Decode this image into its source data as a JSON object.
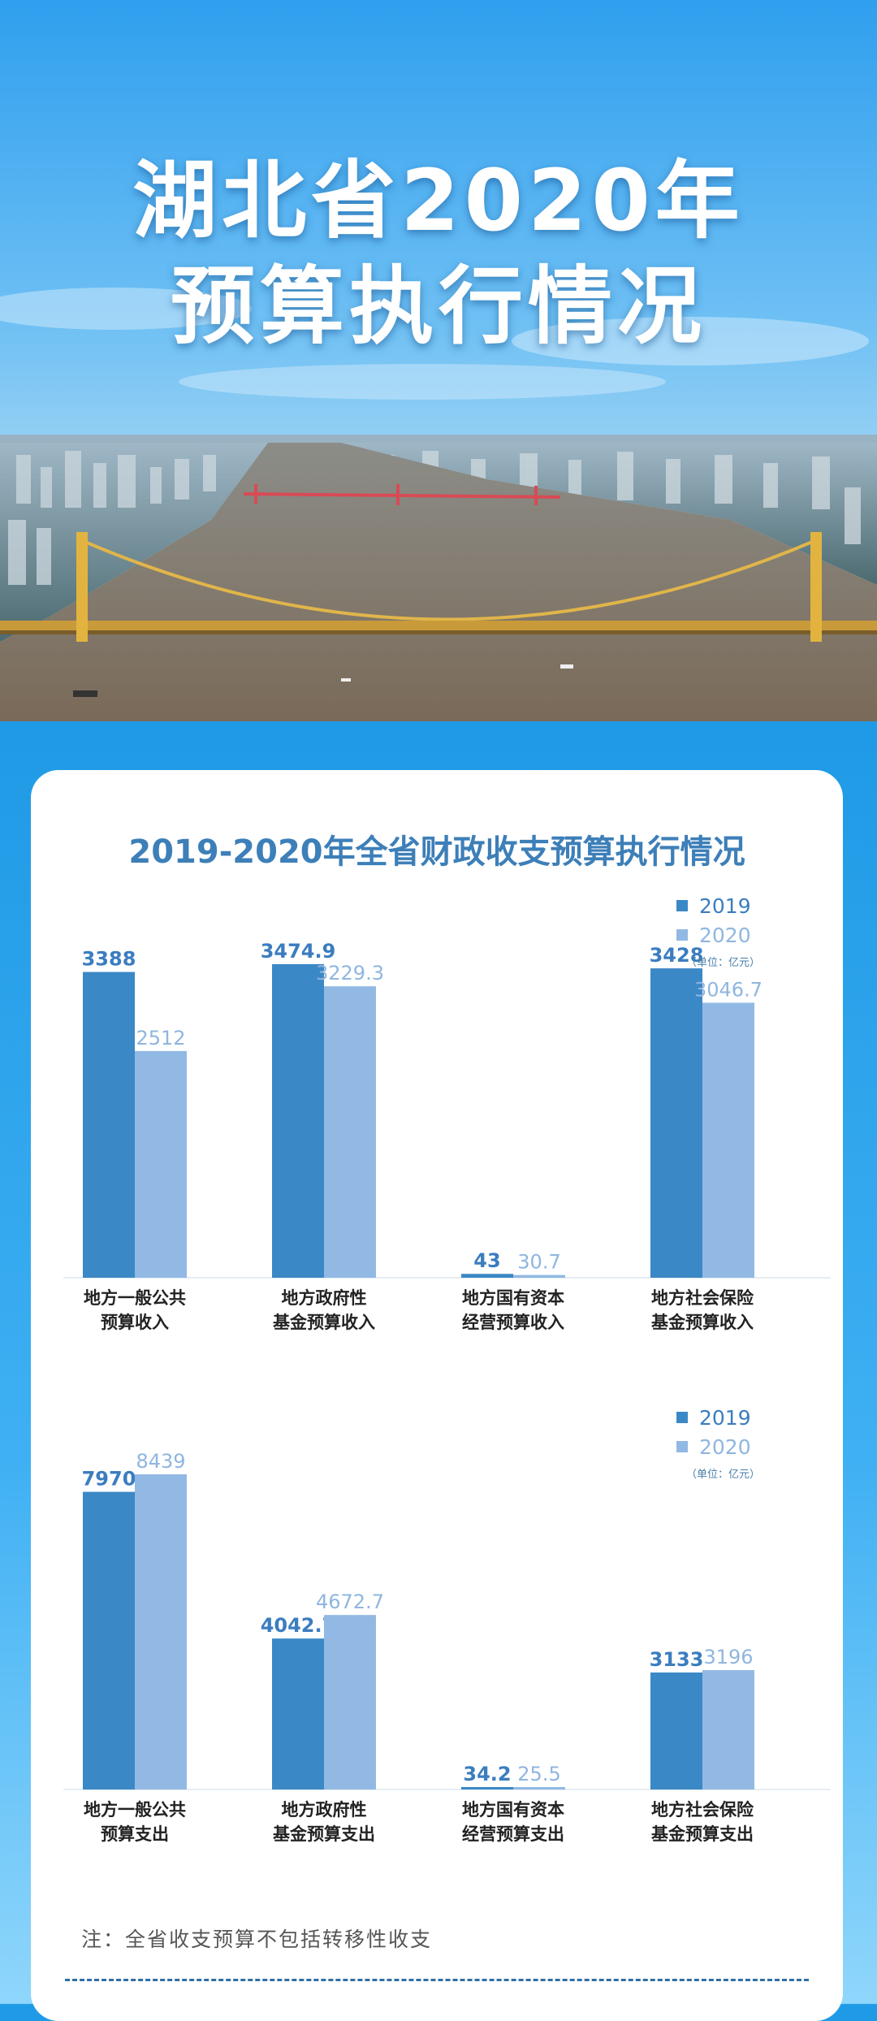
{
  "hero": {
    "title_line1": "湖北省2020年",
    "title_line2": "预算执行情况"
  },
  "card": {
    "title": "2019-2020年全省财政收支预算执行情况",
    "note": "注：全省收支预算不包括转移性收支"
  },
  "colors": {
    "series_2019": "#3b88c6",
    "series_2020": "#92b9e4",
    "label_2019": "#3b7dbf",
    "label_2020": "#8fb6df"
  },
  "chart_data": [
    {
      "type": "bar",
      "title": "",
      "unit": "（单位：亿元）",
      "legend_position": "top-right",
      "grid": false,
      "categories": [
        [
          "地方一般公共",
          "预算收入"
        ],
        [
          "地方政府性",
          "基金预算收入"
        ],
        [
          "地方国有资本",
          "经营预算收入"
        ],
        [
          "地方社会保险",
          "基金预算收入"
        ]
      ],
      "series": [
        {
          "name": "2019",
          "values": [
            3388,
            3474.9,
            43,
            3428
          ],
          "labels": [
            "3388",
            "3474.9",
            "43",
            "3428"
          ]
        },
        {
          "name": "2020",
          "values": [
            2512,
            3229.3,
            30.7,
            3046.7
          ],
          "labels": [
            "2512",
            "3229.3",
            "30.7",
            "3046.7"
          ]
        }
      ],
      "ylim": [
        0,
        3600
      ]
    },
    {
      "type": "bar",
      "title": "",
      "unit": "（单位：亿元）",
      "legend_position": "top-right",
      "grid": false,
      "categories": [
        [
          "地方一般公共",
          "预算支出"
        ],
        [
          "地方政府性",
          "基金预算支出"
        ],
        [
          "地方国有资本",
          "经营预算支出"
        ],
        [
          "地方社会保险",
          "基金预算支出"
        ]
      ],
      "series": [
        {
          "name": "2019",
          "values": [
            7970,
            4042.7,
            34.2,
            3133
          ],
          "labels": [
            "7970",
            "4042.7",
            "34.2",
            "3133"
          ]
        },
        {
          "name": "2020",
          "values": [
            8439,
            4672.7,
            25.5,
            3196
          ],
          "labels": [
            "8439",
            "4672.7",
            "25.5",
            "3196"
          ]
        }
      ],
      "ylim": [
        0,
        8700
      ]
    }
  ]
}
